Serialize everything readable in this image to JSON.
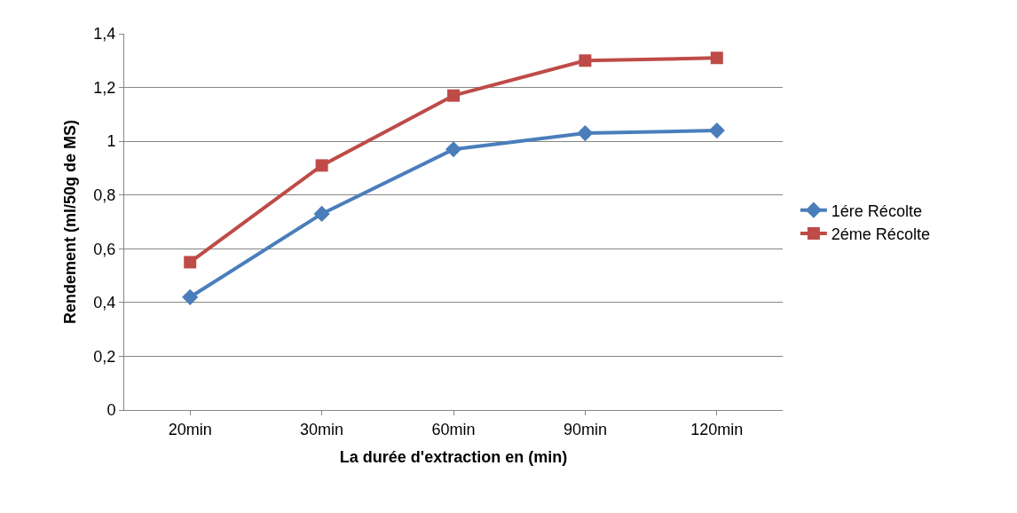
{
  "chart_data": {
    "type": "line",
    "xlabel": "La durée d'extraction en (min)",
    "ylabel": "Rendement (ml/50g de MS)",
    "categories": [
      "20min",
      "30min",
      "60min",
      "90min",
      "120min"
    ],
    "series": [
      {
        "name": "1ére Récolte",
        "color": "#4a7ebb",
        "marker": "diamond",
        "values": [
          0.42,
          0.73,
          0.97,
          1.03,
          1.04
        ]
      },
      {
        "name": "2éme Récolte",
        "color": "#be4b48",
        "marker": "square",
        "values": [
          0.55,
          0.91,
          1.17,
          1.3,
          1.31
        ]
      }
    ],
    "ylim": [
      0,
      1.4
    ],
    "yticks": [
      0,
      {
        "value": 0.2,
        "label": "0,2"
      },
      {
        "value": 0.4,
        "label": "0,4"
      },
      {
        "value": 0.6,
        "label": "0,6"
      },
      {
        "value": 0.8,
        "label": "0,8"
      },
      1,
      {
        "value": 1.2,
        "label": "1,2"
      },
      {
        "value": 1.4,
        "label": "1,4"
      }
    ],
    "grid": "y",
    "legend": "right",
    "line_style": "solid"
  }
}
